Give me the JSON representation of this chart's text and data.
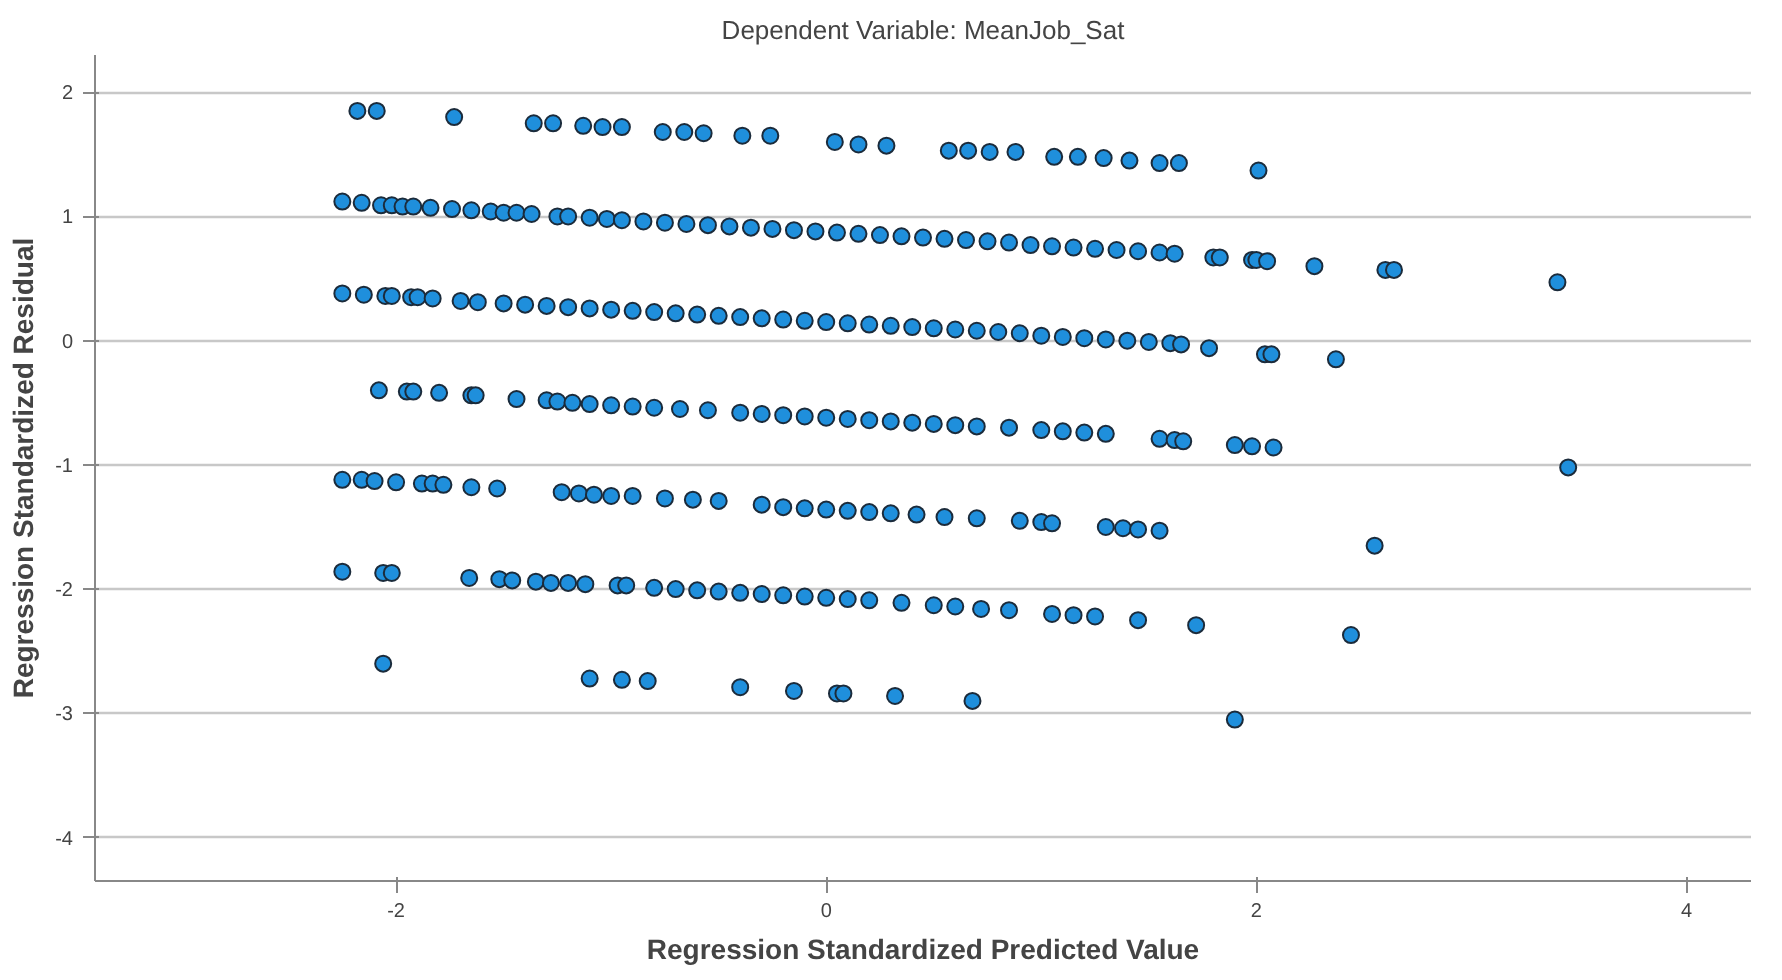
{
  "chart_data": {
    "type": "scatter",
    "title": "Dependent Variable: MeanJob_Sat",
    "xlabel": "Regression Standardized Predicted Value",
    "ylabel": "Regression Standardized Residual",
    "marker": "circle",
    "grid": "y",
    "xlim": [
      -3.4,
      4.3
    ],
    "ylim": [
      -4.35,
      2.3
    ],
    "xticks": [
      -2,
      0,
      2,
      4
    ],
    "yticks": [
      -4,
      -3,
      -2,
      -1,
      0,
      1,
      2
    ],
    "series": [
      {
        "color": "#1f8fdc",
        "x": [
          -2.18,
          -2.09,
          -1.73,
          -1.36,
          -1.27,
          -1.13,
          -1.04,
          -0.95,
          -0.76,
          -0.66,
          -0.57,
          -0.39,
          -0.26,
          0.04,
          0.15,
          0.28,
          0.57,
          0.66,
          0.76,
          0.88,
          1.06,
          1.17,
          1.29,
          1.41,
          1.55,
          1.64,
          2.01,
          -2.25,
          -2.16,
          -2.07,
          -2.02,
          -1.97,
          -1.92,
          -1.84,
          -1.74,
          -1.65,
          -1.56,
          -1.5,
          -1.44,
          -1.37,
          -1.25,
          -1.2,
          -1.1,
          -1.02,
          -0.95,
          -0.85,
          -0.75,
          -0.65,
          -0.55,
          -0.45,
          -0.35,
          -0.25,
          -0.15,
          -0.05,
          0.05,
          0.15,
          0.25,
          0.35,
          0.45,
          0.55,
          0.65,
          0.75,
          0.85,
          0.95,
          1.05,
          1.15,
          1.25,
          1.35,
          1.45,
          1.55,
          1.62,
          1.8,
          1.83,
          1.98,
          2.0,
          2.05,
          2.27,
          2.6,
          2.64,
          3.4,
          -2.25,
          -2.15,
          -2.05,
          -2.02,
          -1.93,
          -1.9,
          -1.83,
          -1.7,
          -1.62,
          -1.5,
          -1.4,
          -1.3,
          -1.2,
          -1.1,
          -1.0,
          -0.9,
          -0.8,
          -0.7,
          -0.6,
          -0.5,
          -0.4,
          -0.3,
          -0.2,
          -0.1,
          0.0,
          0.1,
          0.2,
          0.3,
          0.4,
          0.5,
          0.6,
          0.7,
          0.8,
          0.9,
          1.0,
          1.1,
          1.2,
          1.3,
          1.4,
          1.5,
          1.6,
          1.65,
          1.78,
          2.04,
          2.07,
          2.37,
          -2.08,
          -1.95,
          -1.92,
          -1.8,
          -1.65,
          -1.63,
          -1.44,
          -1.3,
          -1.25,
          -1.18,
          -1.1,
          -1.0,
          -0.9,
          -0.8,
          -0.68,
          -0.55,
          -0.4,
          -0.3,
          -0.2,
          -0.1,
          0.0,
          0.1,
          0.2,
          0.3,
          0.4,
          0.5,
          0.6,
          0.7,
          0.85,
          1.0,
          1.1,
          1.2,
          1.3,
          1.55,
          1.62,
          1.66,
          1.9,
          1.98,
          2.08,
          3.45,
          -2.25,
          -2.16,
          -2.1,
          -2.0,
          -1.88,
          -1.83,
          -1.78,
          -1.65,
          -1.53,
          -1.23,
          -1.15,
          -1.08,
          -1.0,
          -0.9,
          -0.75,
          -0.62,
          -0.5,
          -0.3,
          -0.2,
          -0.1,
          0.0,
          0.1,
          0.2,
          0.3,
          0.42,
          0.55,
          0.7,
          0.9,
          1.0,
          1.05,
          1.3,
          1.38,
          1.45,
          1.55,
          2.55,
          -2.25,
          -2.06,
          -2.02,
          -1.66,
          -1.52,
          -1.46,
          -1.35,
          -1.28,
          -1.2,
          -1.12,
          -0.97,
          -0.93,
          -0.8,
          -0.7,
          -0.6,
          -0.5,
          -0.4,
          -0.3,
          -0.2,
          -0.1,
          0.0,
          0.1,
          0.2,
          0.35,
          0.5,
          0.6,
          0.72,
          0.85,
          1.05,
          1.15,
          1.25,
          1.45,
          1.72,
          2.44,
          -2.06,
          -1.1,
          -0.95,
          -0.83,
          -0.4,
          -0.15,
          0.05,
          0.08,
          0.32,
          0.68,
          1.9
        ],
        "values": [
          1.85,
          1.85,
          1.8,
          1.75,
          1.75,
          1.73,
          1.72,
          1.72,
          1.68,
          1.68,
          1.67,
          1.65,
          1.65,
          1.6,
          1.58,
          1.57,
          1.53,
          1.53,
          1.52,
          1.52,
          1.48,
          1.48,
          1.47,
          1.45,
          1.43,
          1.43,
          1.37,
          1.12,
          1.11,
          1.09,
          1.09,
          1.08,
          1.08,
          1.07,
          1.06,
          1.05,
          1.04,
          1.03,
          1.03,
          1.02,
          1.0,
          1.0,
          0.99,
          0.98,
          0.97,
          0.96,
          0.95,
          0.94,
          0.93,
          0.92,
          0.91,
          0.9,
          0.89,
          0.88,
          0.87,
          0.86,
          0.85,
          0.84,
          0.83,
          0.82,
          0.81,
          0.8,
          0.79,
          0.77,
          0.76,
          0.75,
          0.74,
          0.73,
          0.72,
          0.71,
          0.7,
          0.67,
          0.67,
          0.65,
          0.65,
          0.64,
          0.6,
          0.57,
          0.57,
          0.47,
          0.38,
          0.37,
          0.36,
          0.36,
          0.35,
          0.35,
          0.34,
          0.32,
          0.31,
          0.3,
          0.29,
          0.28,
          0.27,
          0.26,
          0.25,
          0.24,
          0.23,
          0.22,
          0.21,
          0.2,
          0.19,
          0.18,
          0.17,
          0.16,
          0.15,
          0.14,
          0.13,
          0.12,
          0.11,
          0.1,
          0.09,
          0.08,
          0.07,
          0.06,
          0.04,
          0.03,
          0.02,
          0.01,
          0.0,
          -0.01,
          -0.02,
          -0.03,
          -0.06,
          -0.11,
          -0.11,
          -0.15,
          -0.4,
          -0.41,
          -0.41,
          -0.42,
          -0.44,
          -0.44,
          -0.47,
          -0.48,
          -0.49,
          -0.5,
          -0.51,
          -0.52,
          -0.53,
          -0.54,
          -0.55,
          -0.56,
          -0.58,
          -0.59,
          -0.6,
          -0.61,
          -0.62,
          -0.63,
          -0.64,
          -0.65,
          -0.66,
          -0.67,
          -0.68,
          -0.69,
          -0.7,
          -0.72,
          -0.73,
          -0.74,
          -0.75,
          -0.79,
          -0.8,
          -0.81,
          -0.84,
          -0.85,
          -0.86,
          -1.02,
          -1.12,
          -1.12,
          -1.13,
          -1.14,
          -1.15,
          -1.15,
          -1.16,
          -1.18,
          -1.19,
          -1.22,
          -1.23,
          -1.24,
          -1.25,
          -1.25,
          -1.27,
          -1.28,
          -1.29,
          -1.32,
          -1.34,
          -1.35,
          -1.36,
          -1.37,
          -1.38,
          -1.39,
          -1.4,
          -1.42,
          -1.43,
          -1.45,
          -1.46,
          -1.47,
          -1.5,
          -1.51,
          -1.52,
          -1.53,
          -1.65,
          -1.86,
          -1.87,
          -1.87,
          -1.91,
          -1.92,
          -1.93,
          -1.94,
          -1.95,
          -1.95,
          -1.96,
          -1.97,
          -1.97,
          -1.99,
          -2.0,
          -2.01,
          -2.02,
          -2.03,
          -2.04,
          -2.05,
          -2.06,
          -2.07,
          -2.08,
          -2.09,
          -2.11,
          -2.13,
          -2.14,
          -2.16,
          -2.17,
          -2.2,
          -2.21,
          -2.22,
          -2.25,
          -2.29,
          -2.37,
          -2.6,
          -2.72,
          -2.73,
          -2.74,
          -2.79,
          -2.82,
          -2.84,
          -2.84,
          -2.86,
          -2.9,
          -3.05
        ]
      }
    ]
  }
}
